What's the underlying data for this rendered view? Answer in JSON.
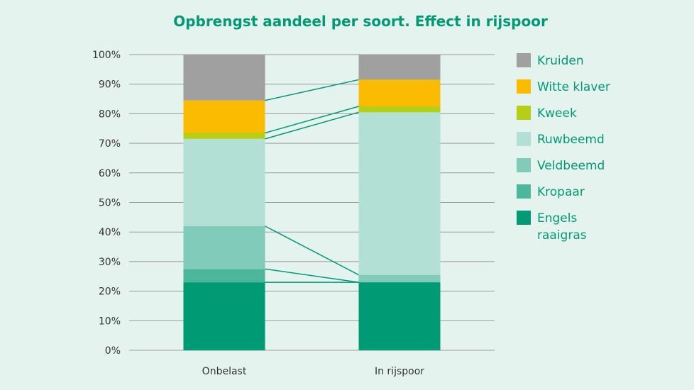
{
  "chart_data": {
    "type": "bar",
    "stacked": true,
    "title": "Opbrengst aandeel per soort. Effect in rijspoor",
    "xlabel": "",
    "ylabel": "",
    "ylim": [
      0,
      100
    ],
    "y_ticks": [
      "0%",
      "10%",
      "20%",
      "30%",
      "40%",
      "50%",
      "60%",
      "70%",
      "80%",
      "90%",
      "100%"
    ],
    "y_tick_values": [
      0,
      10,
      20,
      30,
      40,
      50,
      60,
      70,
      80,
      90,
      100
    ],
    "grid": true,
    "legend_position": "right",
    "categories": [
      "Onbelast",
      "In rijspoor"
    ],
    "series": [
      {
        "name": "Engels raaigras",
        "legend_lines": [
          "Engels",
          "raaigras"
        ],
        "color": "#009a74",
        "values": [
          23,
          23
        ]
      },
      {
        "name": "Kropaar",
        "legend_lines": [
          "Kropaar"
        ],
        "color": "#4db79c",
        "values": [
          4.5,
          0
        ]
      },
      {
        "name": "Veldbeemd",
        "legend_lines": [
          "Veldbeemd"
        ],
        "color": "#80cbb9",
        "values": [
          14.5,
          2.5
        ]
      },
      {
        "name": "Ruwbeemd",
        "legend_lines": [
          "Ruwbeemd"
        ],
        "color": "#b2e0d4",
        "values": [
          29.5,
          55
        ]
      },
      {
        "name": "Kweek",
        "legend_lines": [
          "Kweek"
        ],
        "color": "#b5cf14",
        "values": [
          2,
          2
        ]
      },
      {
        "name": "Witte klaver",
        "legend_lines": [
          "Witte klaver"
        ],
        "color": "#fbbb00",
        "values": [
          11,
          9
        ]
      },
      {
        "name": "Kruiden",
        "legend_lines": [
          "Kruiden"
        ],
        "color": "#a0a0a0",
        "values": [
          15.5,
          8.5
        ]
      }
    ],
    "connector_color": "#009a74",
    "title_color": "#009a74",
    "legend_text_color": "#009a74",
    "grid_color": "#999999"
  }
}
